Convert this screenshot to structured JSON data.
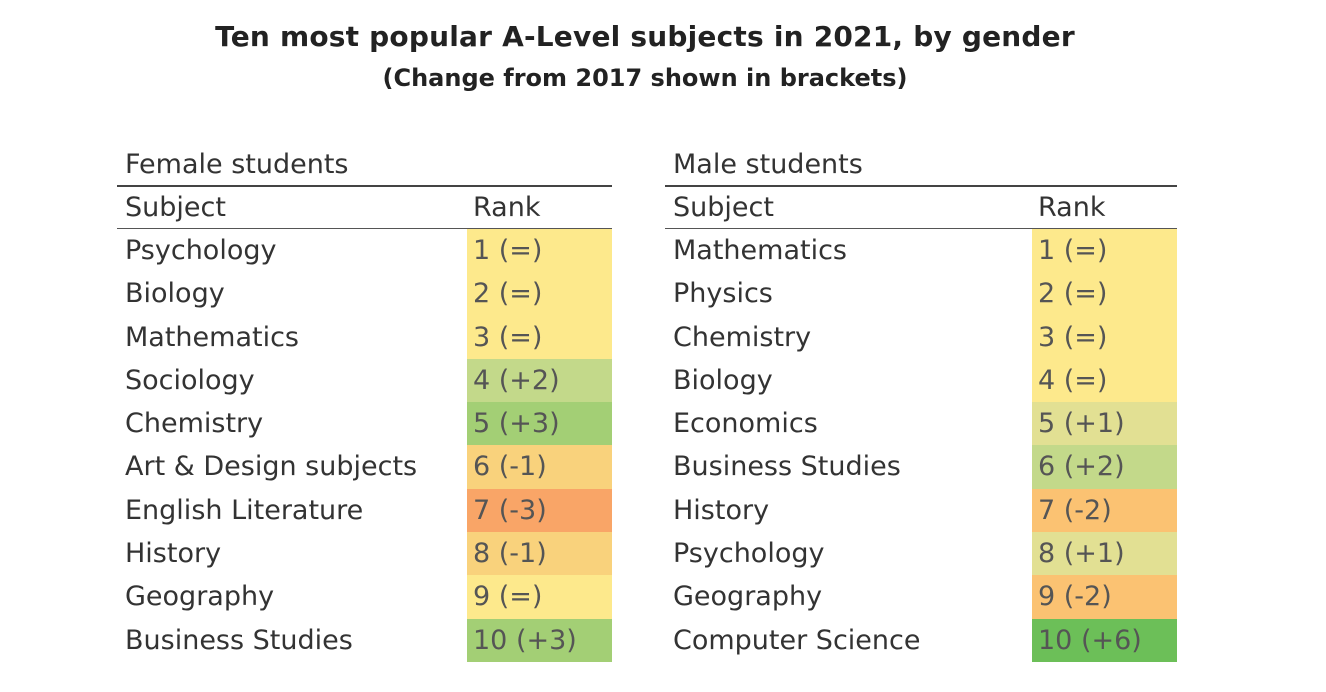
{
  "title": "Ten most popular A-Level subjects in 2021, by gender",
  "subtitle": "(Change from 2017 shown in brackets)",
  "female": {
    "panel_title": "Female students",
    "col_subject": "Subject",
    "col_rank": "Rank",
    "rows": [
      {
        "subject": "Psychology",
        "rank": "1 (=)",
        "color": "#fde98c"
      },
      {
        "subject": "Biology",
        "rank": "2 (=)",
        "color": "#fde98c"
      },
      {
        "subject": "Mathematics",
        "rank": "3 (=)",
        "color": "#fde98c"
      },
      {
        "subject": "Sociology",
        "rank": "4 (+2)",
        "color": "#c3d98a"
      },
      {
        "subject": "Chemistry",
        "rank": "5 (+3)",
        "color": "#a3cf75"
      },
      {
        "subject": "Art & Design subjects",
        "rank": "6 (-1)",
        "color": "#f9d27c"
      },
      {
        "subject": "English Literature",
        "rank": "7 (-3)",
        "color": "#f9a567"
      },
      {
        "subject": "History",
        "rank": "8 (-1)",
        "color": "#f9d27c"
      },
      {
        "subject": "Geography",
        "rank": "9 (=)",
        "color": "#fde98c"
      },
      {
        "subject": "Business Studies",
        "rank": "10 (+3)",
        "color": "#a3cf75"
      }
    ]
  },
  "male": {
    "panel_title": "Male students",
    "col_subject": "Subject",
    "col_rank": "Rank",
    "rows": [
      {
        "subject": "Mathematics",
        "rank": "1 (=)",
        "color": "#fde98c"
      },
      {
        "subject": "Physics",
        "rank": "2 (=)",
        "color": "#fde98c"
      },
      {
        "subject": "Chemistry",
        "rank": "3 (=)",
        "color": "#fde98c"
      },
      {
        "subject": "Biology",
        "rank": "4 (=)",
        "color": "#fde98c"
      },
      {
        "subject": "Economics",
        "rank": "5 (+1)",
        "color": "#e2e093"
      },
      {
        "subject": "Business Studies",
        "rank": "6 (+2)",
        "color": "#c3d98a"
      },
      {
        "subject": "History",
        "rank": "7 (-2)",
        "color": "#fbc272"
      },
      {
        "subject": "Psychology",
        "rank": "8 (+1)",
        "color": "#e2e093"
      },
      {
        "subject": "Geography",
        "rank": "9 (-2)",
        "color": "#fbc272"
      },
      {
        "subject": "Computer Science",
        "rank": "10 (+6)",
        "color": "#6cbf58"
      }
    ]
  }
}
